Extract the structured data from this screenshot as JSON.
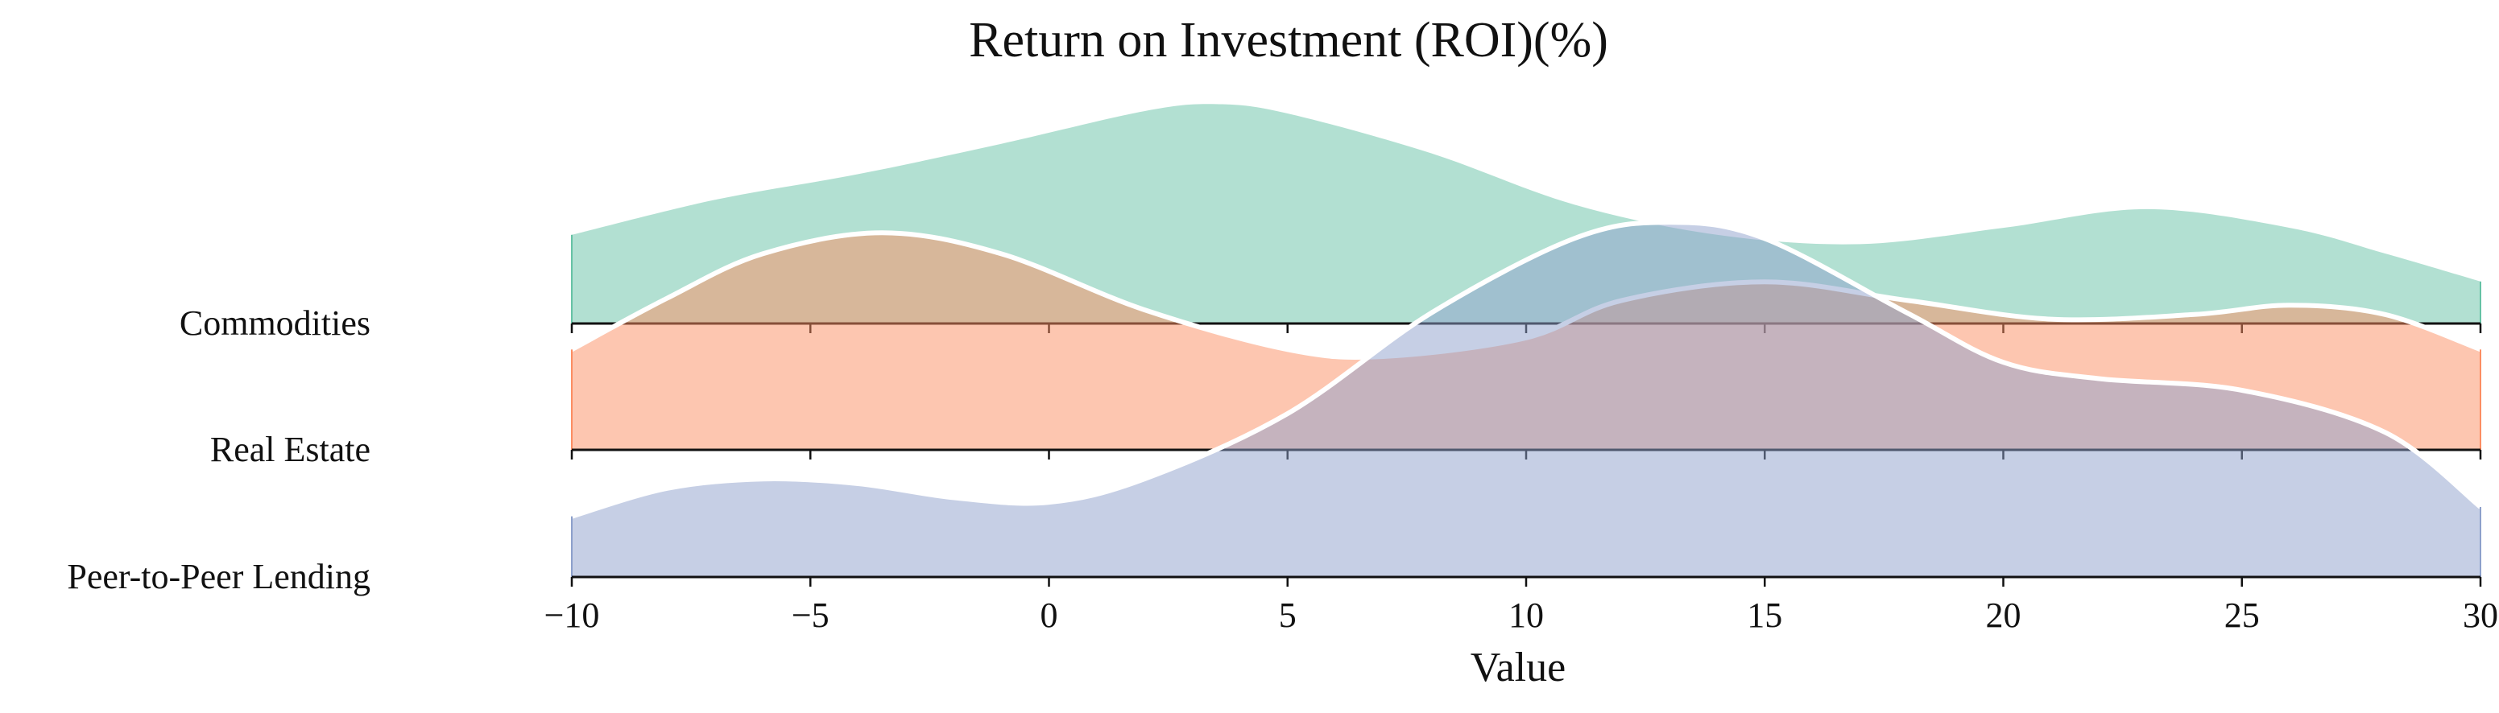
{
  "chart_data": {
    "type": "area",
    "subtype": "ridgeline",
    "title": "Return on Investment (ROI)(%)",
    "xlabel": "Value",
    "ylabel": "",
    "xlim": [
      -10,
      30
    ],
    "xticks": [
      -10,
      -5,
      0,
      5,
      10,
      15,
      20,
      25,
      30
    ],
    "tick_labels": [
      "−10",
      "−5",
      "0",
      "5",
      "10",
      "15",
      "20",
      "25",
      "30"
    ],
    "grid": false,
    "legend": "none",
    "series": [
      {
        "name": "Commodities",
        "color": "#66c2a5",
        "x": [
          -10,
          -7,
          -4,
          -1,
          2,
          3.5,
          5,
          8,
          11,
          14,
          17,
          20,
          23,
          26,
          28,
          30
        ],
        "density": [
          0.38,
          0.53,
          0.64,
          0.77,
          0.91,
          0.94,
          0.9,
          0.73,
          0.51,
          0.38,
          0.34,
          0.41,
          0.49,
          0.41,
          0.3,
          0.18
        ]
      },
      {
        "name": "Real Estate",
        "color": "#fc8d62",
        "x": [
          -10,
          -8,
          -6,
          -3.5,
          -1,
          2,
          5,
          7,
          10,
          12,
          15,
          18,
          21,
          24,
          26,
          28,
          30
        ],
        "density": [
          0.43,
          0.65,
          0.84,
          0.93,
          0.84,
          0.6,
          0.43,
          0.4,
          0.48,
          0.64,
          0.72,
          0.64,
          0.56,
          0.58,
          0.62,
          0.58,
          0.43
        ]
      },
      {
        "name": "Peer-to-Peer Lending",
        "color": "#8da0cb",
        "x": [
          -10,
          -8,
          -6,
          -4,
          -2,
          0,
          2,
          5,
          8,
          11,
          13,
          15,
          18,
          20,
          22,
          25,
          28,
          30
        ],
        "density": [
          0.26,
          0.38,
          0.42,
          0.4,
          0.34,
          0.32,
          0.42,
          0.7,
          1.13,
          1.45,
          1.52,
          1.45,
          1.13,
          0.92,
          0.85,
          0.8,
          0.62,
          0.3
        ]
      }
    ]
  }
}
